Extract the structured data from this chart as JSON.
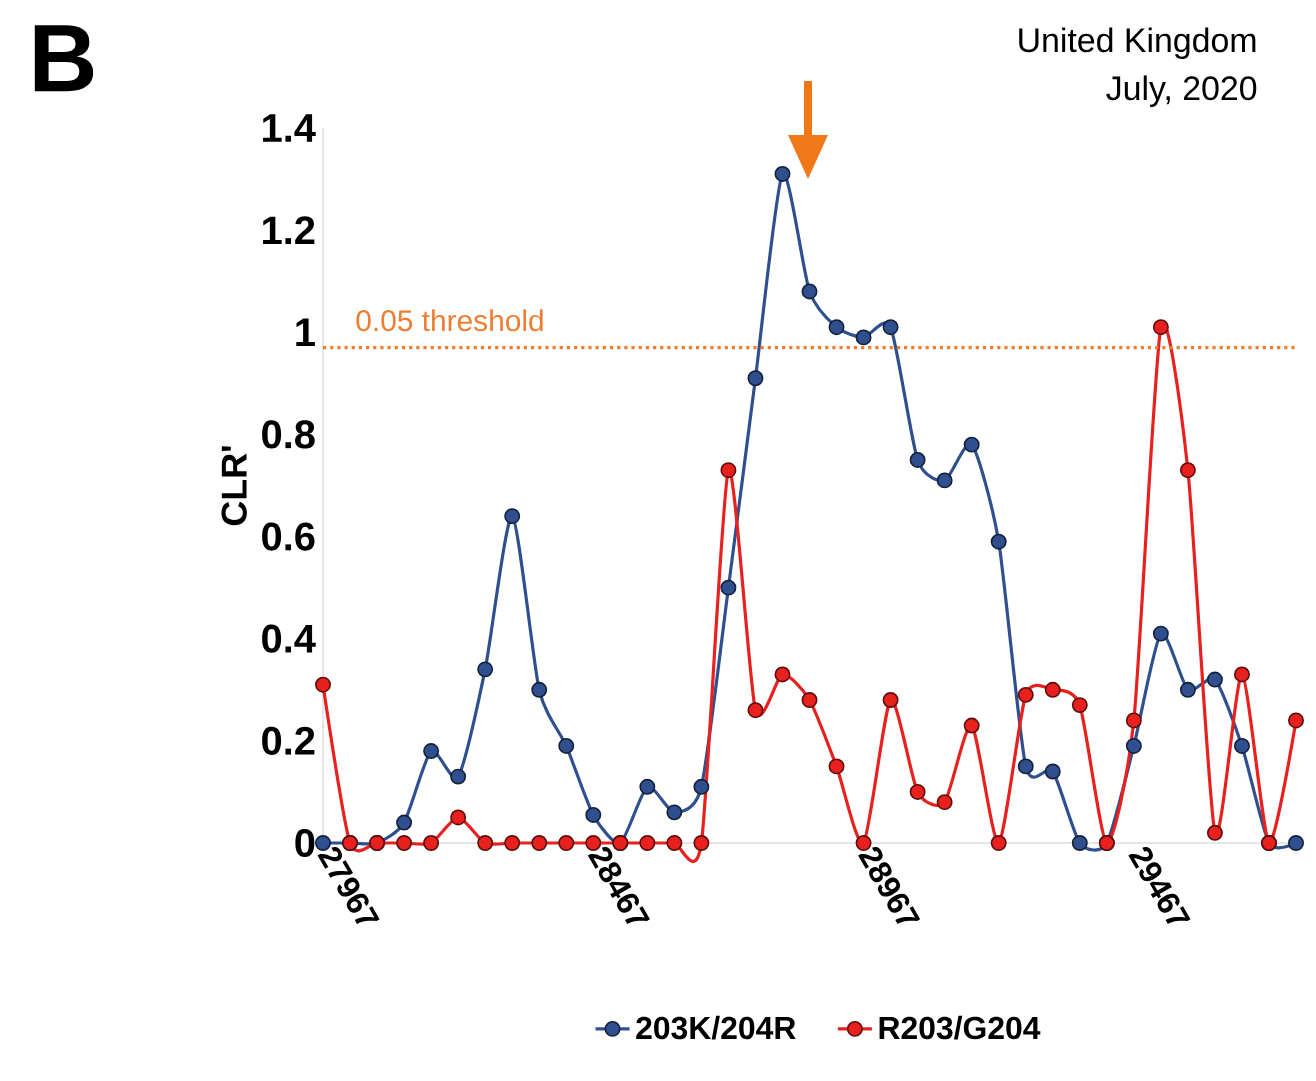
{
  "chart_data": {
    "type": "line",
    "title": "United Kingdom",
    "subtitle": "July, 2020",
    "ylabel": "CLR'",
    "annotations": [
      "B"
    ],
    "x": [
      27967,
      28017,
      28067,
      28117,
      28167,
      28217,
      28267,
      28317,
      28367,
      28417,
      28467,
      28517,
      28567,
      28617,
      28667,
      28717,
      28767,
      28817,
      28867,
      28917,
      28967,
      29017,
      29067,
      29117,
      29167,
      29217,
      29267,
      29317,
      29367,
      29417,
      29467,
      29517,
      29567,
      29617,
      29667,
      29717,
      29767
    ],
    "series": [
      {
        "name": "203K/204R",
        "color": "#2f4f8f",
        "values": [
          0,
          0,
          0,
          0.04,
          0.18,
          0.13,
          0.34,
          0.64,
          0.3,
          0.19,
          0.055,
          0,
          0.11,
          0.06,
          0.11,
          0.5,
          0.91,
          1.31,
          1.08,
          1.01,
          0.99,
          1.01,
          0.75,
          0.71,
          0.78,
          0.59,
          0.15,
          0.14,
          0,
          0,
          0.19,
          0.41,
          0.3,
          0.32,
          0.19,
          0,
          0
        ]
      },
      {
        "name": "R203/G204",
        "color": "#e8201e",
        "values": [
          0.31,
          0,
          0,
          0,
          0,
          0.05,
          0,
          0,
          0,
          0,
          0,
          0,
          0,
          0,
          0,
          0.73,
          0.26,
          0.33,
          0.28,
          0.15,
          0,
          0.28,
          0.1,
          0.08,
          0.23,
          0,
          0.29,
          0.3,
          0.27,
          0,
          0.24,
          1.01,
          0.73,
          0.02,
          0.33,
          0,
          0.24
        ]
      }
    ],
    "xlim": [
      27967,
      29767
    ],
    "ylim": [
      0,
      1.4
    ],
    "xticks": [
      27967,
      28467,
      28967,
      29467
    ],
    "yticks": [
      0,
      0.2,
      0.4,
      0.6,
      0.8,
      1,
      1.2,
      1.4
    ],
    "ref_lines": [
      {
        "axis": "y",
        "value": 0.97,
        "label": "0.05 threshold",
        "color": "#ed7d31",
        "line_style": "dotted"
      }
    ],
    "legend": "bottom",
    "marker": "circle"
  }
}
